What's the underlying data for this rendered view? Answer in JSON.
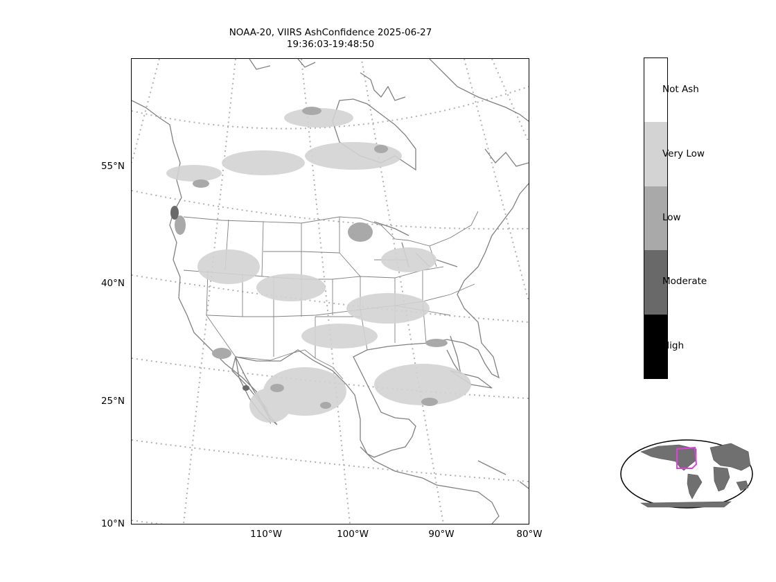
{
  "title": {
    "line1": "NOAA-20, VIIRS AshConfidence 2025-06-27",
    "line2": "19:36:03-19:48:50"
  },
  "axes": {
    "lat_labels": [
      "55°N",
      "40°N",
      "25°N",
      "10°N"
    ],
    "lon_labels": [
      "110°W",
      "100°W",
      "90°W",
      "80°W"
    ]
  },
  "colorbar": {
    "categories": [
      {
        "label": "Not Ash",
        "color": "#ffffff"
      },
      {
        "label": "Very Low",
        "color": "#d3d3d3"
      },
      {
        "label": "Low",
        "color": "#a9a9a9"
      },
      {
        "label": "Moderate",
        "color": "#696969"
      },
      {
        "label": "High",
        "color": "#000000"
      }
    ]
  },
  "map": {
    "land_outline_color": "#808080",
    "graticule_color": "#b0b0b0",
    "inset_region_color": "#e040e0",
    "inset_land_color": "#707070"
  }
}
